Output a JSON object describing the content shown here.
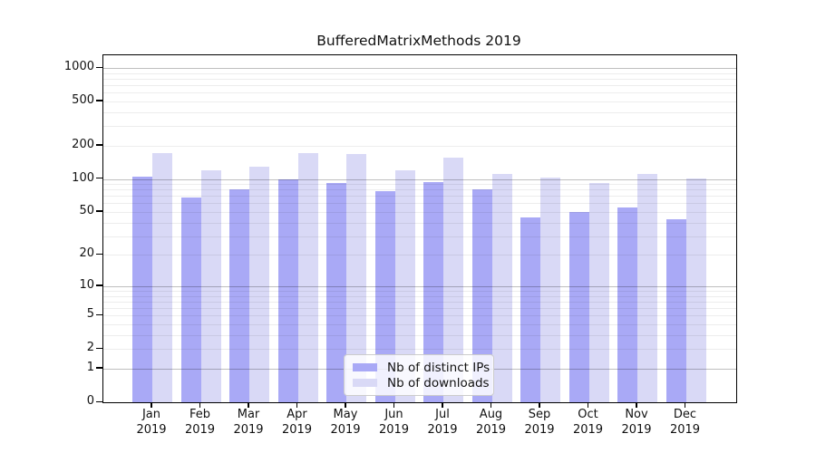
{
  "title": "BufferedMatrixMethods 2019",
  "colors": {
    "distinct_ips": "#a9a9f6",
    "downloads": "#d9d9f6",
    "axis": "#000000",
    "major_grid": "rgba(0,0,0,0.25)",
    "minor_grid": "rgba(0,0,0,0.07)",
    "legend_border": "#cccccc",
    "background": "#ffffff"
  },
  "chart_data": {
    "type": "bar",
    "scale": "log10(1+y)",
    "grid": true,
    "legend_position": "bottom-center-inside",
    "categories": [
      "Jan 2019",
      "Feb 2019",
      "Mar 2019",
      "Apr 2019",
      "May 2019",
      "Jun 2019",
      "Jul 2019",
      "Aug 2019",
      "Sep 2019",
      "Oct 2019",
      "Nov 2019",
      "Dec 2019"
    ],
    "series": [
      {
        "key": "distinct_ips",
        "name": "Nb of distinct IPs",
        "color": "#a9a9f6",
        "values": [
          105,
          68,
          80,
          100,
          91,
          78,
          94,
          80,
          45,
          50,
          55,
          43
        ]
      },
      {
        "key": "downloads",
        "name": "Nb of downloads",
        "color": "#d9d9f6",
        "values": [
          170,
          120,
          130,
          170,
          167,
          120,
          155,
          111,
          103,
          92,
          110,
          101
        ]
      }
    ],
    "yticks": [
      0,
      1,
      2,
      5,
      10,
      20,
      50,
      100,
      200,
      500,
      1000
    ],
    "ylim": [
      0,
      1300
    ],
    "title": "BufferedMatrixMethods 2019",
    "xlabel": "",
    "ylabel": ""
  }
}
